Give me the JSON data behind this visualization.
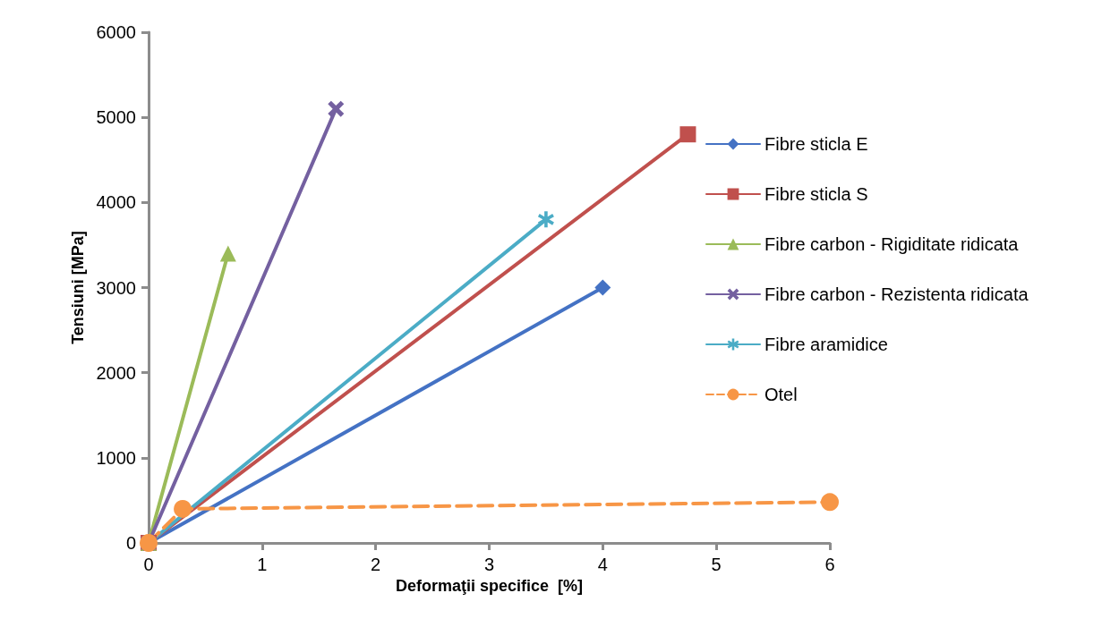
{
  "chart_data": {
    "type": "line",
    "xlabel": "Deformaţii specifice  [%]",
    "ylabel": "Tensiuni [MPa]",
    "xlim": [
      0,
      6
    ],
    "xticks": [
      0,
      1,
      2,
      3,
      4,
      5,
      6
    ],
    "ylim": [
      0,
      6000
    ],
    "yticks": [
      0,
      1000,
      2000,
      3000,
      4000,
      5000,
      6000
    ],
    "grid": false,
    "legend": "right",
    "line_style": "solid",
    "series": [
      {
        "name": "Fibre sticla E",
        "color": "#4472c4",
        "marker": "diamond",
        "x": [
          0,
          4
        ],
        "values": [
          0,
          3000
        ]
      },
      {
        "name": "Fibre sticla S",
        "color": "#c0504d",
        "marker": "square",
        "x": [
          0,
          4.75
        ],
        "values": [
          0,
          4800
        ]
      },
      {
        "name": "Fibre carbon - Rigiditate ridicata",
        "color": "#9bbb59",
        "marker": "triangle",
        "x": [
          0,
          0.7
        ],
        "values": [
          0,
          3400
        ]
      },
      {
        "name": "Fibre carbon - Rezistenta ridicata",
        "color": "#7460a0",
        "marker": "cross",
        "x": [
          0,
          1.65
        ],
        "values": [
          0,
          5100
        ]
      },
      {
        "name": "Fibre aramidice",
        "color": "#4bacc6",
        "marker": "star",
        "x": [
          0,
          3.5
        ],
        "values": [
          0,
          3800
        ]
      },
      {
        "name": "Otel",
        "color": "#f79646",
        "marker": "circle",
        "line_style": "dashed",
        "x": [
          0,
          0.3,
          6
        ],
        "values": [
          0,
          400,
          480
        ]
      }
    ]
  }
}
